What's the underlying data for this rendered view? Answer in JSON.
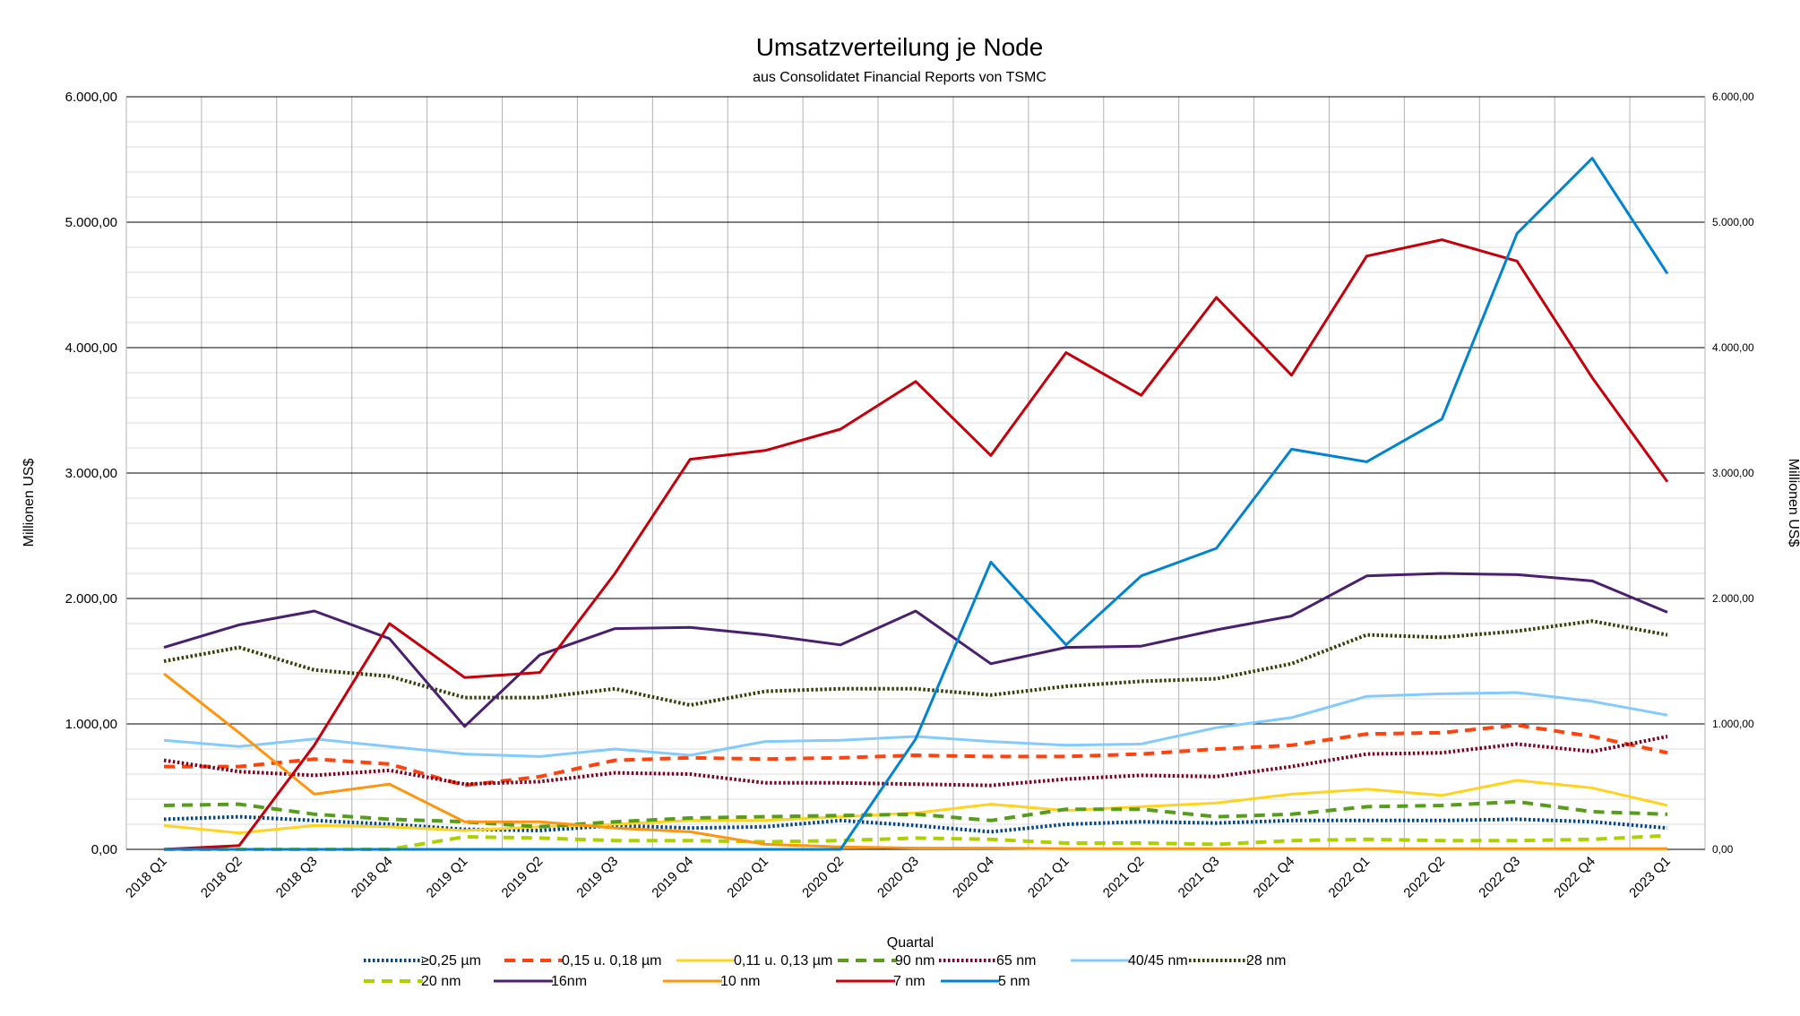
{
  "chart_data": {
    "type": "line",
    "title": "Umsatzverteilung je Node",
    "subtitle": "aus Consolidatet Financial Reports von TSMC",
    "xlabel": "Quartal",
    "ylabel": "Millionen US$",
    "ylabel_right": "Millionen US$",
    "ylim": [
      0,
      6000
    ],
    "ytick_values": [
      0,
      1000,
      2000,
      3000,
      4000,
      5000,
      6000
    ],
    "ytick_labels": [
      "0,00",
      "1.000,00",
      "2.000,00",
      "3.000,00",
      "4.000,00",
      "5.000,00",
      "6.000,00"
    ],
    "grid": true,
    "legend_position": "bottom",
    "categories": [
      "2018 Q1",
      "2018 Q2",
      "2018 Q3",
      "2018 Q4",
      "2019 Q1",
      "2019 Q2",
      "2019 Q3",
      "2019 Q4",
      "2020 Q1",
      "2020 Q2",
      "2020 Q3",
      "2020 Q4",
      "2021 Q1",
      "2021 Q2",
      "2021 Q3",
      "2021 Q4",
      "2022 Q1",
      "2022 Q2",
      "2022 Q3",
      "2022 Q4",
      "2023 Q1"
    ],
    "series": [
      {
        "name": "≥0,25 µm",
        "color": "#004586",
        "style": "dotted",
        "values": [
          240,
          260,
          230,
          200,
          160,
          150,
          190,
          170,
          180,
          230,
          190,
          140,
          200,
          220,
          210,
          230,
          230,
          230,
          240,
          220,
          170
        ]
      },
      {
        "name": "0,15 u. 0,18 µm",
        "color": "#ff420e",
        "style": "dashed",
        "values": [
          660,
          660,
          720,
          680,
          510,
          580,
          710,
          730,
          720,
          730,
          750,
          740,
          740,
          760,
          800,
          830,
          920,
          930,
          990,
          900,
          770
        ]
      },
      {
        "name": "0,11 u. 0,13 µm",
        "color": "#ffd320",
        "style": "solid",
        "values": [
          190,
          130,
          190,
          180,
          150,
          180,
          200,
          230,
          230,
          260,
          290,
          360,
          310,
          340,
          370,
          440,
          480,
          430,
          550,
          490,
          350
        ]
      },
      {
        "name": "90 nm",
        "color": "#579d1c",
        "style": "dashed",
        "values": [
          350,
          360,
          280,
          240,
          220,
          180,
          220,
          250,
          260,
          270,
          280,
          230,
          320,
          320,
          260,
          280,
          340,
          350,
          380,
          300,
          280
        ]
      },
      {
        "name": "65 nm",
        "color": "#7e0021",
        "style": "dotted",
        "values": [
          710,
          620,
          590,
          630,
          520,
          540,
          610,
          600,
          530,
          530,
          520,
          510,
          560,
          590,
          580,
          660,
          760,
          770,
          840,
          780,
          900
        ]
      },
      {
        "name": "40/45 nm",
        "color": "#83caff",
        "style": "solid",
        "values": [
          870,
          820,
          880,
          820,
          760,
          740,
          800,
          750,
          860,
          870,
          900,
          860,
          830,
          840,
          970,
          1050,
          1220,
          1240,
          1250,
          1180,
          1070
        ]
      },
      {
        "name": "28 nm",
        "color": "#314004",
        "style": "dotted",
        "values": [
          1500,
          1610,
          1430,
          1380,
          1210,
          1210,
          1280,
          1150,
          1260,
          1280,
          1280,
          1230,
          1300,
          1340,
          1360,
          1480,
          1710,
          1690,
          1740,
          1820,
          1710
        ]
      },
      {
        "name": "20 nm",
        "color": "#aecf00",
        "style": "dashed",
        "values": [
          0,
          0,
          0,
          0,
          100,
          90,
          70,
          70,
          60,
          70,
          90,
          80,
          50,
          50,
          40,
          70,
          80,
          70,
          70,
          80,
          110
        ]
      },
      {
        "name": "16nm",
        "color": "#4b1f6f",
        "style": "solid",
        "values": [
          1610,
          1790,
          1900,
          1680,
          980,
          1550,
          1760,
          1770,
          1710,
          1630,
          1900,
          1480,
          1610,
          1620,
          1750,
          1860,
          2180,
          2200,
          2190,
          2140,
          1890
        ]
      },
      {
        "name": "10 nm",
        "color": "#ff950e",
        "style": "solid",
        "values": [
          1400,
          930,
          440,
          520,
          220,
          220,
          170,
          140,
          40,
          20,
          10,
          10,
          5,
          5,
          5,
          5,
          5,
          5,
          5,
          5,
          5
        ]
      },
      {
        "name": "7 nm",
        "color": "#c5000b",
        "style": "solid",
        "values": [
          0,
          30,
          830,
          1800,
          1370,
          1410,
          2200,
          3110,
          3180,
          3350,
          3730,
          3140,
          3960,
          3620,
          4400,
          3780,
          4730,
          4860,
          4690,
          3760,
          2930
        ]
      },
      {
        "name": "5 nm",
        "color": "#0084d1",
        "style": "solid",
        "values": [
          0,
          0,
          0,
          0,
          0,
          0,
          0,
          0,
          0,
          0,
          880,
          2290,
          1630,
          2180,
          2400,
          3190,
          3090,
          3430,
          4910,
          5510,
          4590
        ]
      }
    ]
  }
}
